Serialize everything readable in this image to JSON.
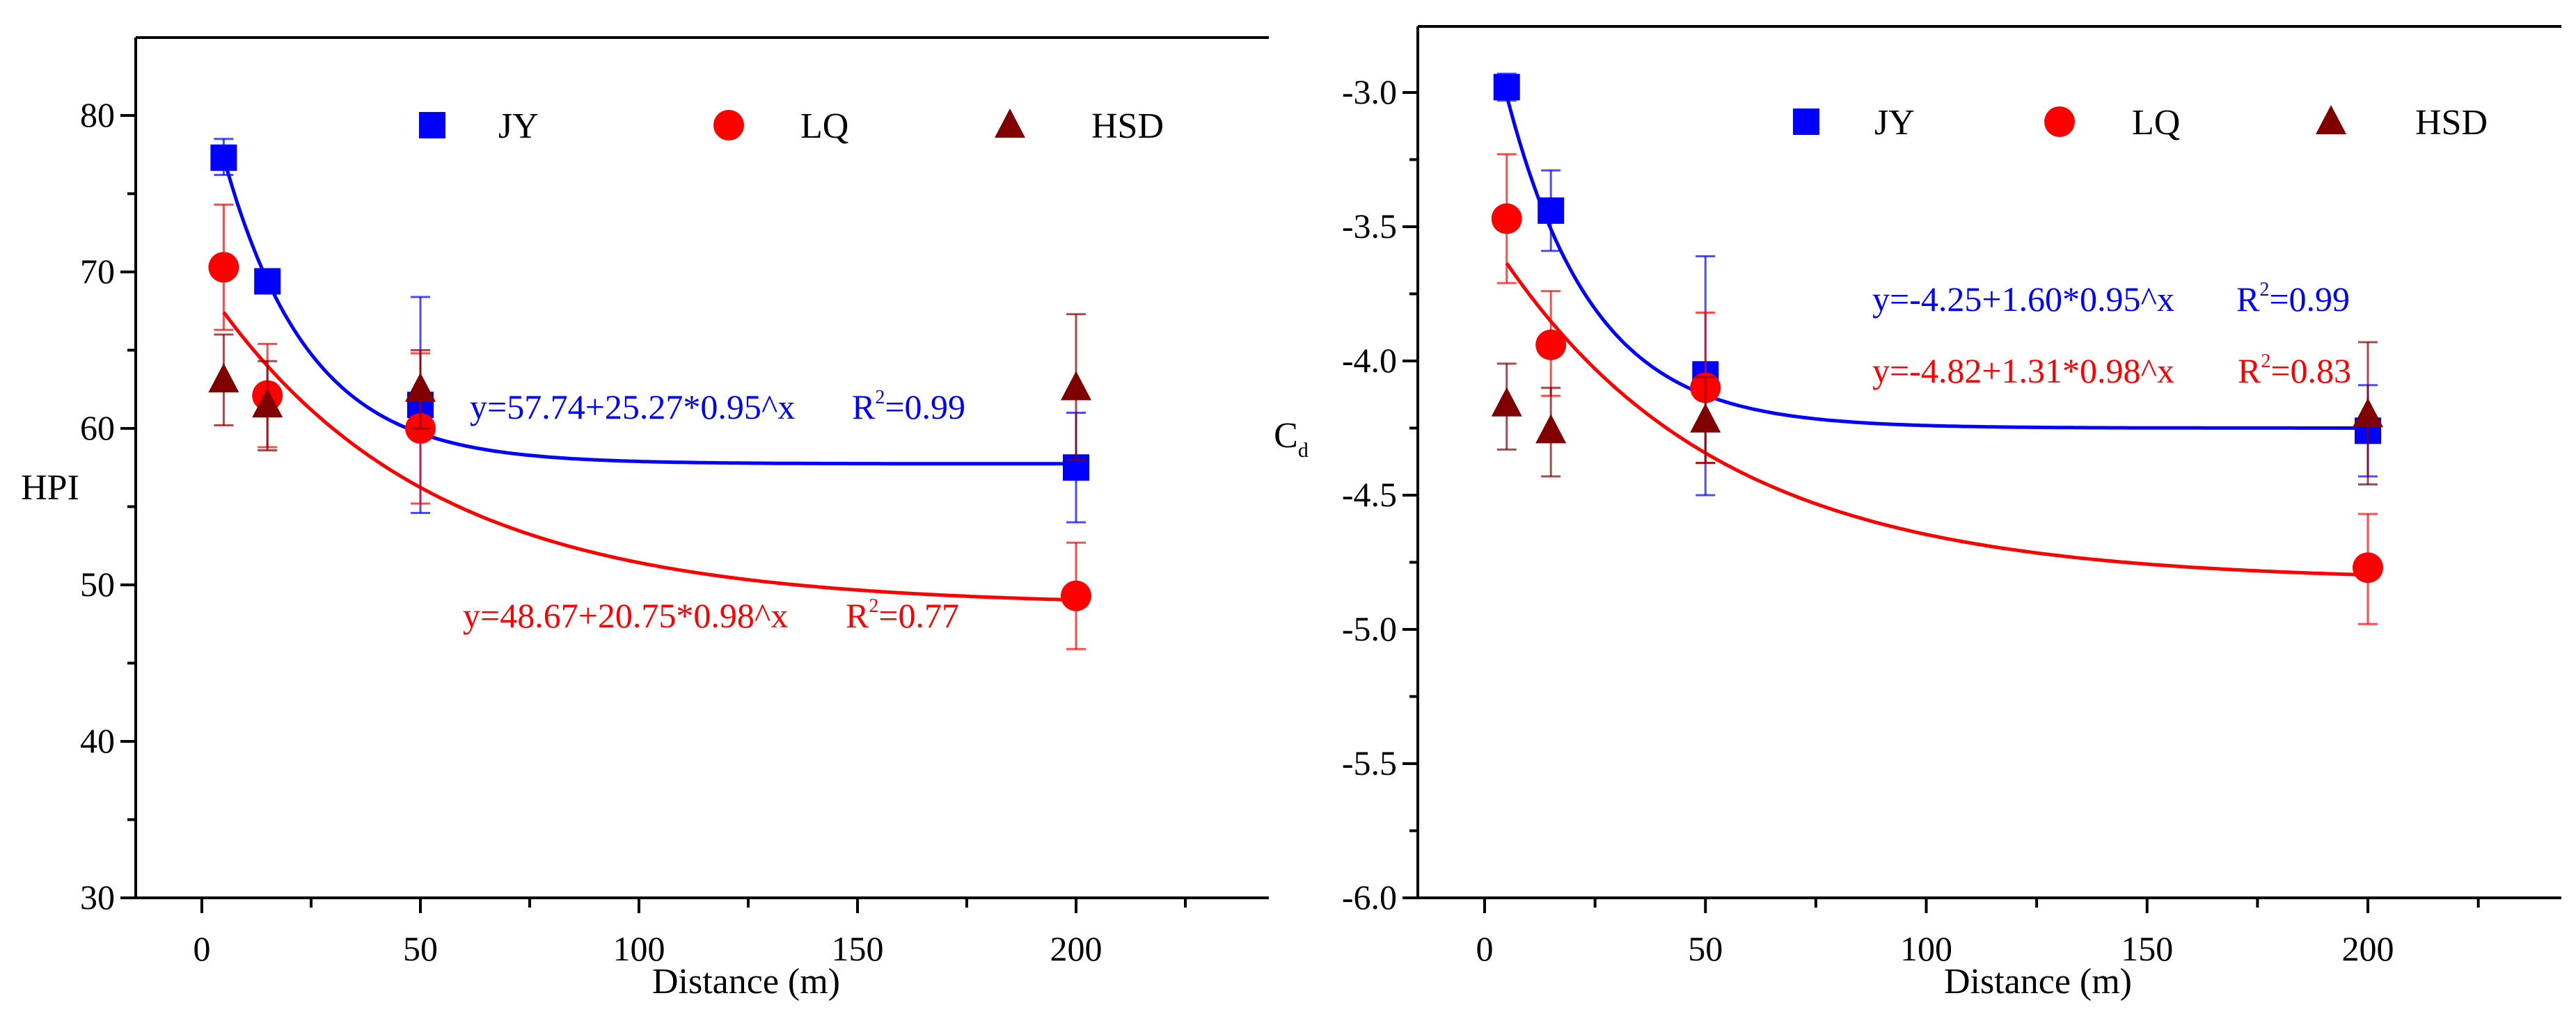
{
  "chart_data": [
    {
      "type": "scatter",
      "title": "",
      "xlabel": "Distance (m)",
      "ylabel": "HPI",
      "ylabel_sub": "",
      "xlim": [
        -15,
        245
      ],
      "ylim": [
        30,
        85
      ],
      "xticks": [
        0,
        50,
        100,
        150,
        200
      ],
      "yticks": [
        30,
        40,
        50,
        60,
        70,
        80
      ],
      "ytick_labels": [
        "30",
        "40",
        "50",
        "60",
        "70",
        "80"
      ],
      "xtick_labels": [
        "0",
        "50",
        "100",
        "150",
        "200"
      ],
      "legend_position": "top",
      "series": [
        {
          "name": "JY",
          "color": "#0000ff",
          "marker": "square",
          "x": [
            5,
            15,
            50,
            200
          ],
          "y": [
            77.3,
            69.4,
            61.5,
            57.5
          ],
          "err_low": [
            76.2,
            69.0,
            54.6,
            54.0
          ],
          "err_high": [
            78.5,
            69.8,
            68.4,
            61.0
          ]
        },
        {
          "name": "LQ",
          "color": "#ff0000",
          "marker": "circle",
          "x": [
            5,
            15,
            50,
            200
          ],
          "y": [
            70.3,
            62.1,
            60.0,
            49.3
          ],
          "err_low": [
            66.3,
            58.8,
            55.2,
            45.9
          ],
          "err_high": [
            74.3,
            65.4,
            64.8,
            52.7
          ]
        },
        {
          "name": "HSD",
          "color": "#800000",
          "marker": "triangle",
          "x": [
            5,
            15,
            50,
            200
          ],
          "y": [
            63.1,
            61.5,
            62.5,
            62.6
          ],
          "err_low": [
            60.2,
            58.6,
            60.0,
            58.0
          ],
          "err_high": [
            66.0,
            64.3,
            65.0,
            67.3
          ]
        }
      ],
      "fits": [
        {
          "series": "JY",
          "color": "#0000ff",
          "a": 57.74,
          "b": 25.27,
          "c": 0.95,
          "x_range": [
            5,
            200
          ],
          "equation": "y=57.74+25.27*0.95^x",
          "r2_label": "R",
          "r2_value": "=0.99"
        },
        {
          "series": "LQ",
          "color": "#ff0000",
          "a": 48.67,
          "b": 20.75,
          "c": 0.98,
          "x_range": [
            5,
            200
          ],
          "equation": "y=48.67+20.75*0.98^x",
          "r2_label": "R",
          "r2_value": "=0.77"
        }
      ]
    },
    {
      "type": "scatter",
      "title": "",
      "xlabel": "Distance (m)",
      "ylabel": "C",
      "ylabel_sub": "d",
      "xlim": [
        -15,
        245
      ],
      "ylim": [
        -6.0,
        -2.75
      ],
      "xticks": [
        0,
        50,
        100,
        150,
        200
      ],
      "yticks": [
        -6.0,
        -5.5,
        -5.0,
        -4.5,
        -4.0,
        -3.5,
        -3.0
      ],
      "ytick_labels": [
        "-6.0",
        "-5.5",
        "-5.0",
        "-4.5",
        "-4.0",
        "-3.5",
        "-3.0"
      ],
      "xtick_labels": [
        "0",
        "50",
        "100",
        "150",
        "200"
      ],
      "legend_position": "top",
      "series": [
        {
          "name": "JY",
          "color": "#0000ff",
          "marker": "square",
          "x": [
            5,
            15,
            50,
            200
          ],
          "y": [
            -2.98,
            -3.44,
            -4.05,
            -4.26
          ],
          "err_low": [
            -3.03,
            -3.59,
            -4.5,
            -4.43
          ],
          "err_high": [
            -2.93,
            -3.29,
            -3.61,
            -4.09
          ]
        },
        {
          "name": "LQ",
          "color": "#ff0000",
          "marker": "circle",
          "x": [
            5,
            15,
            50,
            200
          ],
          "y": [
            -3.47,
            -3.94,
            -4.1,
            -4.77
          ],
          "err_low": [
            -3.71,
            -4.13,
            -4.38,
            -4.98
          ],
          "err_high": [
            -3.23,
            -3.74,
            -3.82,
            -4.57
          ]
        },
        {
          "name": "HSD",
          "color": "#800000",
          "marker": "triangle",
          "x": [
            5,
            15,
            50,
            200
          ],
          "y": [
            -4.16,
            -4.26,
            -4.22,
            -4.2
          ],
          "err_low": [
            -4.33,
            -4.43,
            -4.38,
            -4.46
          ],
          "err_high": [
            -4.01,
            -4.1,
            -4.06,
            -3.93
          ]
        }
      ],
      "fits": [
        {
          "series": "JY",
          "color": "#0000ff",
          "a": -4.25,
          "b": 1.6,
          "c": 0.95,
          "x_range": [
            5,
            200
          ],
          "equation": "y=-4.25+1.60*0.95^x",
          "r2_label": "R",
          "r2_value": "=0.99"
        },
        {
          "series": "LQ",
          "color": "#ff0000",
          "a": -4.82,
          "b": 1.31,
          "c": 0.98,
          "x_range": [
            5,
            200
          ],
          "equation": "y=-4.82+1.31*0.98^x",
          "r2_label": "R",
          "r2_value": "=0.83"
        }
      ]
    }
  ]
}
